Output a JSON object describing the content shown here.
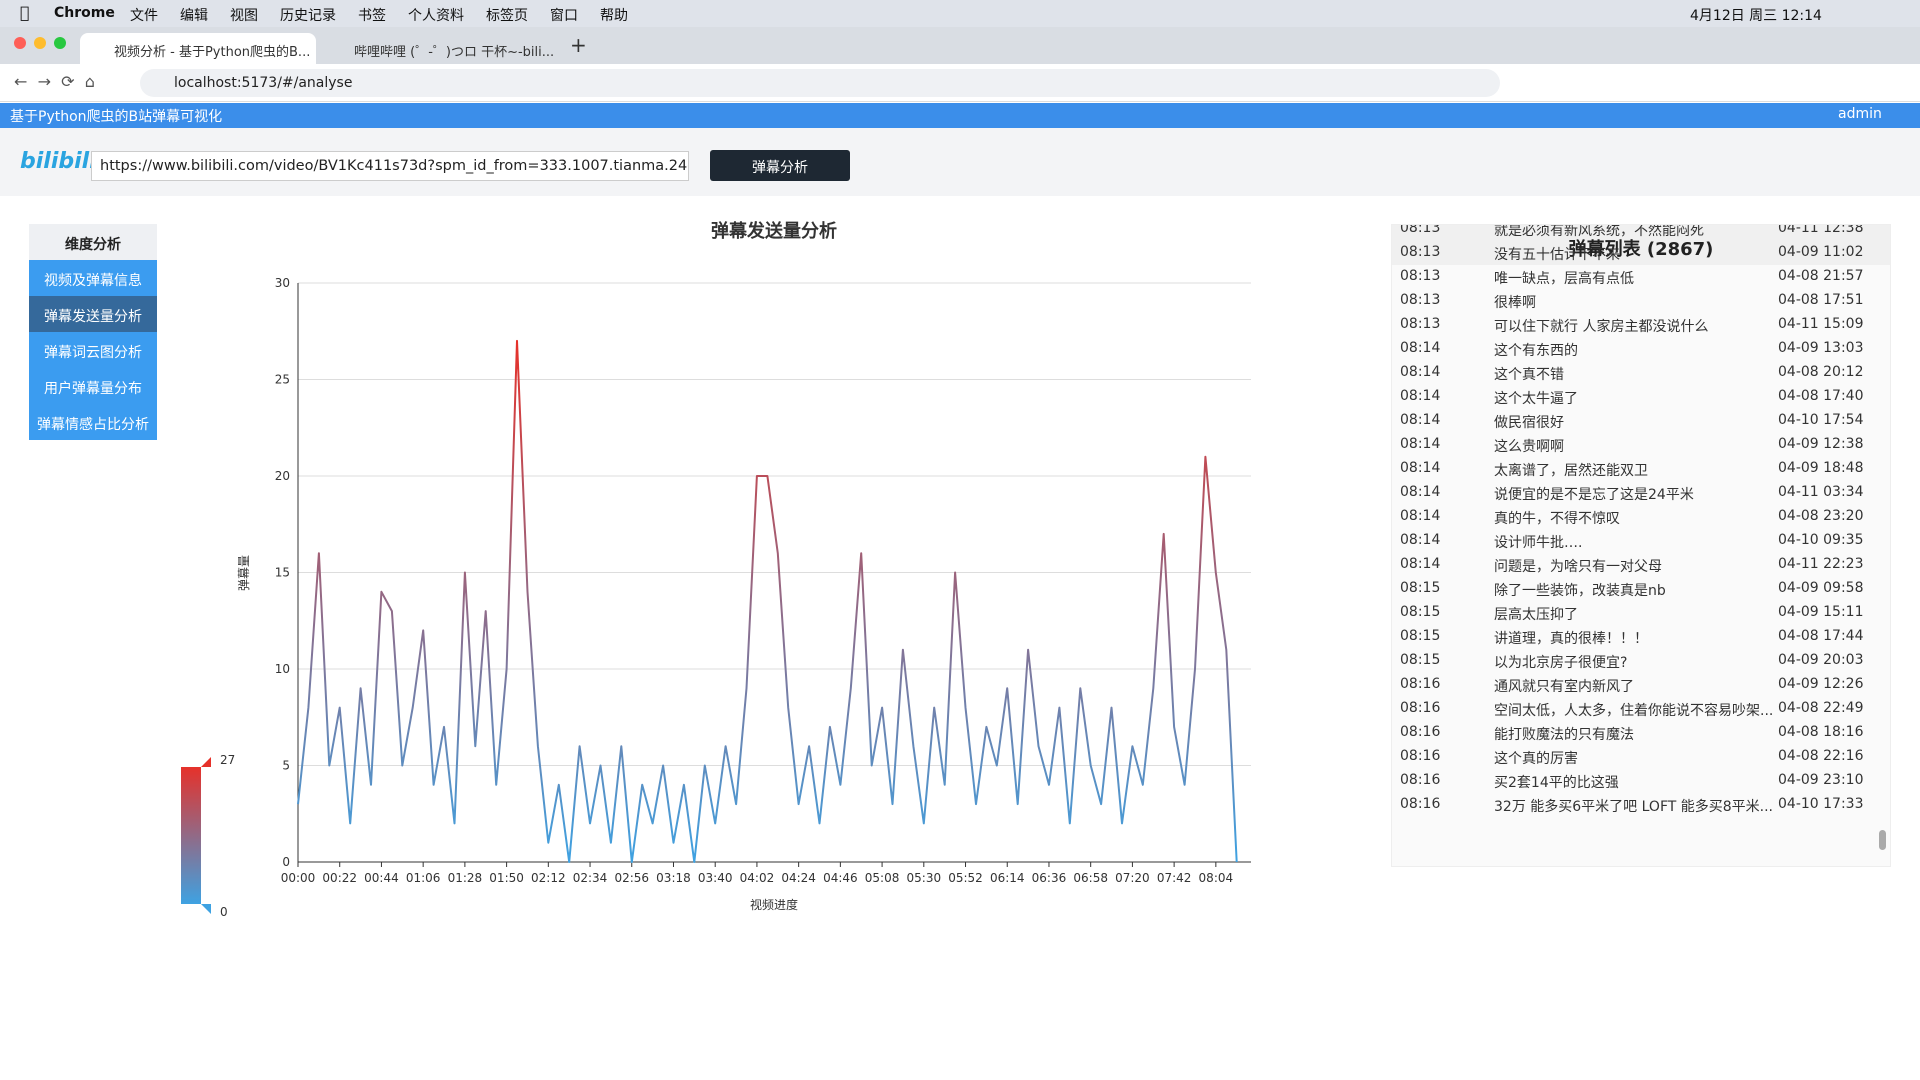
{
  "menu_bar": {
    "app": "Chrome",
    "items": [
      "文件",
      "编辑",
      "视图",
      "历史记录",
      "书签",
      "个人资料",
      "标签页",
      "窗口",
      "帮助"
    ],
    "clock": "4月12日 周三 12:14"
  },
  "tabs": [
    "视频分析 - 基于Python爬虫的B...",
    "哔哩哔哩 (゜-゜)つロ 干杯~-bili..."
  ],
  "address": "localhost:5173/#/analyse",
  "app_header": {
    "title": "基于Python爬虫的B站弹幕可视化",
    "user": "admin"
  },
  "search": {
    "logo": "bilibili",
    "url": "https://www.bilibili.com/video/BV1Kc411s73d?spm_id_from=333.1007.tianma.24-3-93",
    "button": "弹幕分析"
  },
  "sidebar": {
    "title": "维度分析",
    "items": [
      "视频及弹幕信息",
      "弹幕发送量分析",
      "弹幕词云图分析",
      "用户弹幕量分布",
      "弹幕情感占比分析"
    ],
    "active": 1
  },
  "chart_data": {
    "type": "line",
    "title": "弹幕发送量分析",
    "x_label": "视频进度",
    "y_label": "弹幕量",
    "categories": [
      "00:00",
      null,
      null,
      null,
      "00:22",
      null,
      null,
      null,
      "00:44",
      null,
      null,
      null,
      "01:06",
      null,
      null,
      null,
      "01:28",
      null,
      null,
      null,
      "01:50",
      null,
      null,
      null,
      "02:12",
      null,
      null,
      null,
      "02:34",
      null,
      null,
      null,
      "02:56",
      null,
      null,
      null,
      "03:18",
      null,
      null,
      null,
      "03:40",
      null,
      null,
      null,
      "04:02",
      null,
      null,
      null,
      "04:24",
      null,
      null,
      null,
      "04:46",
      null,
      null,
      null,
      "05:08",
      null,
      null,
      null,
      "05:30",
      null,
      null,
      null,
      "05:52",
      null,
      null,
      null,
      "06:14",
      null,
      null,
      null,
      "06:36",
      null,
      null,
      null,
      "06:58",
      null,
      null,
      null,
      "07:20",
      null,
      null,
      null,
      "07:42",
      null,
      null,
      null,
      "08:04",
      null,
      null
    ],
    "series": [
      {
        "name": "弹幕量",
        "values": [
          3,
          8,
          16,
          5,
          8,
          2,
          9,
          4,
          14,
          13,
          5,
          8,
          12,
          4,
          7,
          2,
          15,
          6,
          13,
          4,
          10,
          27,
          14,
          6,
          1,
          4,
          0,
          6,
          2,
          5,
          1,
          6,
          0,
          4,
          2,
          5,
          1,
          4,
          0,
          5,
          2,
          6,
          3,
          9,
          20,
          20,
          16,
          8,
          3,
          6,
          2,
          7,
          4,
          9,
          16,
          5,
          8,
          3,
          11,
          6,
          2,
          8,
          4,
          15,
          8,
          3,
          7,
          5,
          9,
          3,
          11,
          6,
          4,
          8,
          2,
          9,
          5,
          3,
          8,
          2,
          6,
          4,
          9,
          17,
          7,
          4,
          10,
          21,
          15,
          11,
          0
        ]
      }
    ],
    "ylim": [
      0,
      30
    ],
    "yticks": [
      0,
      5,
      10,
      15,
      20,
      25,
      30
    ],
    "grid": true,
    "visual_map": {
      "min": 0,
      "max": 27,
      "colors": [
        "#3ea2e2",
        "#e6312a"
      ]
    }
  },
  "danmaku_list": {
    "title": "弹幕列表 (2867)",
    "rows": [
      [
        "08:13",
        "就是必须有新风系统，不然能闷死",
        "04-11 12:38"
      ],
      [
        "08:13",
        "没有五十估计下不来",
        "04-09 11:02"
      ],
      [
        "08:13",
        "唯一缺点，层高有点低",
        "04-08 21:57"
      ],
      [
        "08:13",
        "很棒啊",
        "04-08 17:51"
      ],
      [
        "08:13",
        "可以住下就行 人家房主都没说什么",
        "04-11 15:09"
      ],
      [
        "08:14",
        "这个有东西的",
        "04-09 13:03"
      ],
      [
        "08:14",
        "这个真不错",
        "04-08 20:12"
      ],
      [
        "08:14",
        "这个太牛逼了",
        "04-08 17:40"
      ],
      [
        "08:14",
        "做民宿很好",
        "04-10 17:54"
      ],
      [
        "08:14",
        "这么贵啊啊",
        "04-09 12:38"
      ],
      [
        "08:14",
        "太离谱了，居然还能双卫",
        "04-09 18:48"
      ],
      [
        "08:14",
        "说便宜的是不是忘了这是24平米",
        "04-11 03:34"
      ],
      [
        "08:14",
        "真的牛，不得不惊叹",
        "04-08 23:20"
      ],
      [
        "08:14",
        "设计师牛批….",
        "04-10 09:35"
      ],
      [
        "08:14",
        "问题是，为啥只有一对父母",
        "04-11 22:23"
      ],
      [
        "08:15",
        "除了一些装饰，改装真是nb",
        "04-09 09:58"
      ],
      [
        "08:15",
        "层高太压抑了",
        "04-09 15:11"
      ],
      [
        "08:15",
        "讲道理，真的很棒！！！",
        "04-08 17:44"
      ],
      [
        "08:15",
        "以为北京房子很便宜?",
        "04-09 20:03"
      ],
      [
        "08:16",
        "通风就只有室内新风了",
        "04-09 12:26"
      ],
      [
        "08:16",
        "空间太低，人太多，住着你能说不容易吵架...",
        "04-08 22:49"
      ],
      [
        "08:16",
        "能打败魔法的只有魔法",
        "04-08 18:16"
      ],
      [
        "08:16",
        "这个真的厉害",
        "04-08 22:16"
      ],
      [
        "08:16",
        "买2套14平的比这强",
        "04-09 23:10"
      ],
      [
        "08:16",
        "32万 能多买6平米了吧 LOFT 能多买8平米...",
        "04-10 17:33"
      ]
    ]
  }
}
